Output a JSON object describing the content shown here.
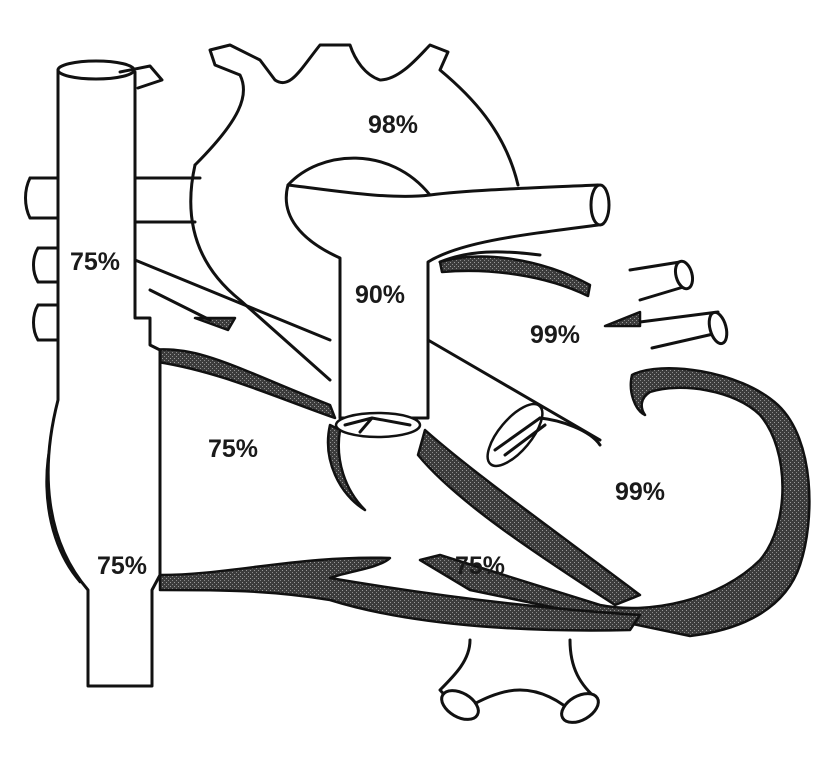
{
  "labels": {
    "aortic_arch": "98%",
    "superior_vena_cava": "75%",
    "pulmonary_artery": "90%",
    "left_atrium": "99%",
    "right_atrium": "75%",
    "left_ventricle": "99%",
    "inferior_vena_cava": "75%",
    "right_ventricle": "75%"
  },
  "colors": {
    "line": "#111111",
    "wall_fill": "#3a3a3a",
    "background": "#ffffff"
  }
}
